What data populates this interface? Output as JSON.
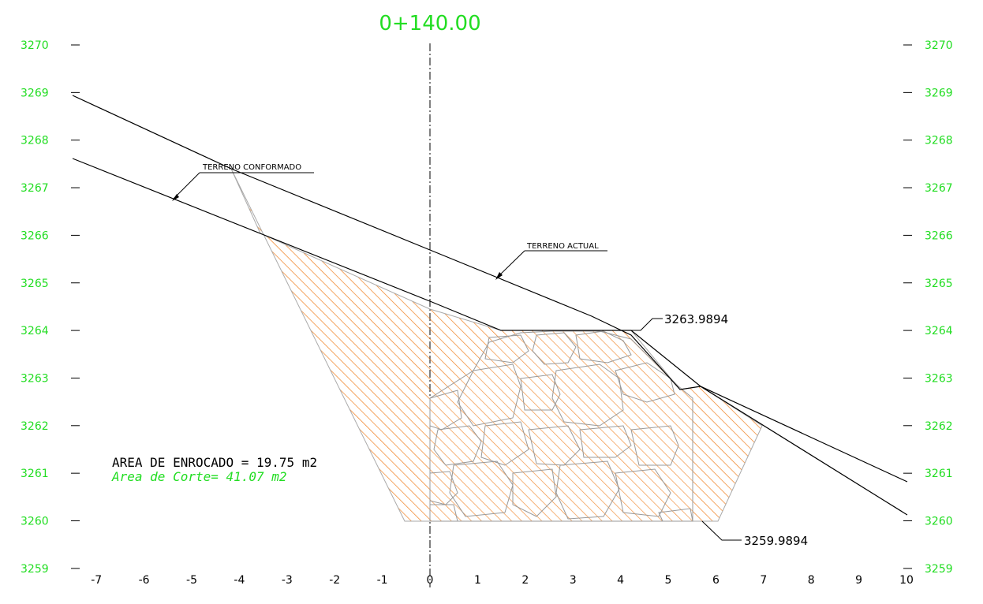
{
  "title": "0+140.00",
  "y_ticks": [
    "3270",
    "3269",
    "3268",
    "3267",
    "3266",
    "3265",
    "3264",
    "3263",
    "3262",
    "3261",
    "3260",
    "3259"
  ],
  "x_ticks": [
    "-7",
    "-6",
    "-5",
    "-4",
    "-3",
    "-2",
    "-1",
    "0",
    "1",
    "2",
    "3",
    "4",
    "5",
    "6",
    "7",
    "8",
    "9",
    "10"
  ],
  "labels": {
    "terreno_conformado": "TERRENO CONFORMADO",
    "terreno_actual": "TERRENO ACTUAL",
    "elev_top": "3263.9894",
    "elev_bottom": "3259.9894",
    "area_enrocado": "AREA DE ENROCADO = 19.75 m2",
    "area_corte": "Area de Corte= 41.07 m2"
  },
  "colors": {
    "axis_text": "#22dd22",
    "hatch": "#f08020",
    "line": "#000000"
  }
}
